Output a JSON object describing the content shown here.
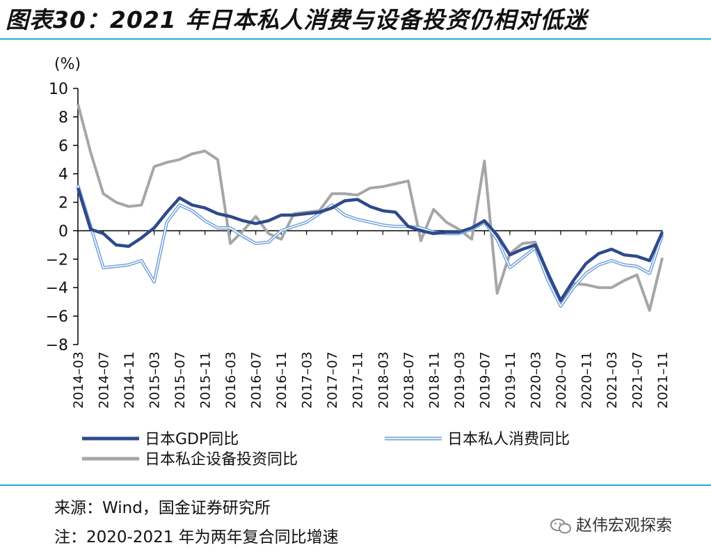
{
  "figure": {
    "title": "图表30：2021 年日本私人消费与设备投资仍相对低迷",
    "source": "来源：Wind，国金证券研究所",
    "note": "注：2020-2021 年为两年复合同比增速",
    "watermark": "赵伟宏观探索"
  },
  "chart_data": {
    "type": "line",
    "title": "",
    "ylabel": "(%)",
    "xlabel": "",
    "ylim": [
      -8,
      10
    ],
    "yticks": [
      10,
      8,
      6,
      4,
      2,
      0,
      -2,
      -4,
      -6,
      -8
    ],
    "x": [
      "2014-03",
      "2014-05",
      "2014-07",
      "2014-09",
      "2014-11",
      "2015-01",
      "2015-03",
      "2015-05",
      "2015-07",
      "2015-09",
      "2015-11",
      "2016-01",
      "2016-03",
      "2016-05",
      "2016-07",
      "2016-09",
      "2016-11",
      "2017-01",
      "2017-03",
      "2017-05",
      "2017-07",
      "2017-09",
      "2017-11",
      "2018-01",
      "2018-03",
      "2018-05",
      "2018-07",
      "2018-09",
      "2018-11",
      "2019-01",
      "2019-03",
      "2019-05",
      "2019-07",
      "2019-09",
      "2019-11",
      "2020-01",
      "2020-03",
      "2020-05",
      "2020-07",
      "2020-09",
      "2020-11",
      "2021-01",
      "2021-03",
      "2021-05",
      "2021-07",
      "2021-09",
      "2021-11"
    ],
    "xtick_labels": [
      "2014-03",
      "2014-07",
      "2014-11",
      "2015-03",
      "2015-07",
      "2015-11",
      "2016-03",
      "2016-07",
      "2016-11",
      "2017-03",
      "2017-07",
      "2017-11",
      "2018-03",
      "2018-07",
      "2018-11",
      "2019-03",
      "2019-07",
      "2019-11",
      "2020-03",
      "2020-07",
      "2020-11",
      "2021-03",
      "2021-07",
      "2021-11"
    ],
    "legend_position": "bottom",
    "series": [
      {
        "name": "日本GDP同比",
        "color": "#2e4a8b",
        "style": "solid",
        "values": [
          3.0,
          0.1,
          -0.2,
          -1.0,
          -1.1,
          -0.5,
          0.2,
          1.3,
          2.3,
          1.8,
          1.6,
          1.2,
          1.0,
          0.7,
          0.5,
          0.7,
          1.1,
          1.1,
          1.2,
          1.3,
          1.6,
          2.1,
          2.2,
          1.7,
          1.4,
          1.3,
          0.3,
          0.0,
          -0.2,
          -0.1,
          -0.1,
          0.2,
          0.7,
          -0.3,
          -1.7,
          -1.3,
          -1.0,
          -3.0,
          -4.9,
          -3.5,
          -2.3,
          -1.6,
          -1.3,
          -1.7,
          -1.8,
          -2.1,
          -0.1
        ]
      },
      {
        "name": "日本私人消费同比",
        "color": "#6f9fd8",
        "style": "double",
        "values": [
          3.2,
          0.3,
          -2.6,
          -2.5,
          -2.4,
          -2.1,
          -3.6,
          0.6,
          1.8,
          1.4,
          0.7,
          0.2,
          0.2,
          -0.4,
          -0.9,
          -0.8,
          0.0,
          0.3,
          0.6,
          1.2,
          1.8,
          1.1,
          0.8,
          0.6,
          0.4,
          0.3,
          0.3,
          0.2,
          -0.1,
          -0.2,
          -0.2,
          0.1,
          0.6,
          -0.6,
          -2.6,
          -1.9,
          -1.2,
          -3.5,
          -5.3,
          -4.0,
          -3.0,
          -2.4,
          -2.1,
          -2.4,
          -2.5,
          -3.0,
          -0.3
        ]
      },
      {
        "name": "日本私企设备投资同比",
        "color": "#a6a6a6",
        "style": "solid",
        "values": [
          8.9,
          5.5,
          2.6,
          2.0,
          1.7,
          1.8,
          4.5,
          4.8,
          5.0,
          5.4,
          5.6,
          5.0,
          -0.9,
          0.0,
          1.0,
          -0.2,
          -0.6,
          1.2,
          1.3,
          1.4,
          2.6,
          2.6,
          2.5,
          3.0,
          3.1,
          3.3,
          3.5,
          -0.7,
          1.5,
          0.6,
          0.1,
          -0.6,
          4.9,
          -4.4,
          -1.6,
          -0.9,
          -0.8,
          -3.0,
          -5.0,
          -3.7,
          -3.8,
          -4.0,
          -4.0,
          -3.5,
          -3.1,
          -5.6,
          -1.9
        ]
      }
    ]
  }
}
